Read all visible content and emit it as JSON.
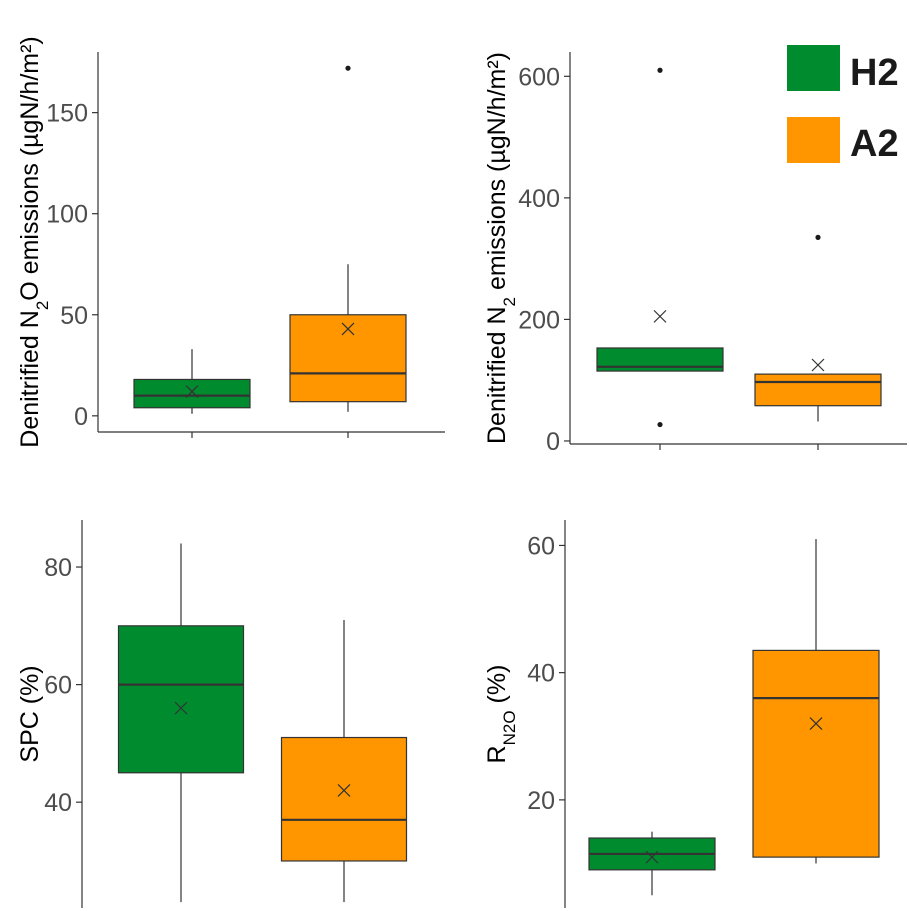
{
  "legend": {
    "items": [
      {
        "label": "H2",
        "color": "#008b2f"
      },
      {
        "label": "A2",
        "color": "#ff9600"
      }
    ]
  },
  "chart_data": [
    {
      "type": "box",
      "ylabel": {
        "pre": "Denitrified N",
        "sub": "2",
        "post": "O emissions (µgN/h/m²)"
      },
      "ylim": [
        -8,
        180
      ],
      "yticks": [
        0,
        50,
        100,
        150
      ],
      "series": [
        {
          "name": "H2",
          "color": "#008b2f",
          "whisker_low": 1,
          "q1": 4,
          "median": 10,
          "q3": 18,
          "whisker_high": 33,
          "mean": 12,
          "outliers": []
        },
        {
          "name": "A2",
          "color": "#ff9600",
          "whisker_low": 2,
          "q1": 7,
          "median": 21,
          "q3": 50,
          "whisker_high": 75,
          "mean": 43,
          "outliers": [
            172
          ]
        }
      ]
    },
    {
      "type": "box",
      "ylabel": {
        "pre": "Denitrified N",
        "sub": "2",
        "post": " emissions (µgN/h/m²)"
      },
      "ylim": [
        -5,
        640
      ],
      "yticks": [
        0,
        200,
        400,
        600
      ],
      "series": [
        {
          "name": "H2",
          "color": "#008b2f",
          "whisker_low": 115,
          "q1": 115,
          "median": 122,
          "q3": 153,
          "whisker_high": 153,
          "mean": 205,
          "outliers": [
            610,
            27
          ]
        },
        {
          "name": "A2",
          "color": "#ff9600",
          "whisker_low": 32,
          "q1": 58,
          "median": 97,
          "q3": 110,
          "whisker_high": 110,
          "mean": 125,
          "outliers": [
            335
          ]
        }
      ]
    },
    {
      "type": "box",
      "ylabel": {
        "pre": "SPC (%)",
        "sub": "",
        "post": ""
      },
      "ylim": [
        22,
        88
      ],
      "yticks": [
        40,
        60,
        80
      ],
      "series": [
        {
          "name": "H2",
          "color": "#008b2f",
          "whisker_low": 23,
          "q1": 45,
          "median": 60,
          "q3": 70,
          "whisker_high": 84,
          "mean": 56,
          "outliers": []
        },
        {
          "name": "A2",
          "color": "#ff9600",
          "whisker_low": 23,
          "q1": 30,
          "median": 37,
          "q3": 51,
          "whisker_high": 71,
          "mean": 42,
          "outliers": []
        }
      ]
    },
    {
      "type": "box",
      "ylabel": {
        "pre": "R",
        "sub": "N2O",
        "post": " (%)"
      },
      "ylim": [
        3,
        64
      ],
      "yticks": [
        20,
        40,
        60
      ],
      "series": [
        {
          "name": "H2",
          "color": "#008b2f",
          "whisker_low": 5,
          "q1": 9,
          "median": 11.5,
          "q3": 14,
          "whisker_high": 15,
          "mean": 11,
          "outliers": []
        },
        {
          "name": "A2",
          "color": "#ff9600",
          "whisker_low": 10,
          "q1": 11,
          "median": 36,
          "q3": 43.5,
          "whisker_high": 61,
          "mean": 32,
          "outliers": []
        }
      ]
    }
  ]
}
